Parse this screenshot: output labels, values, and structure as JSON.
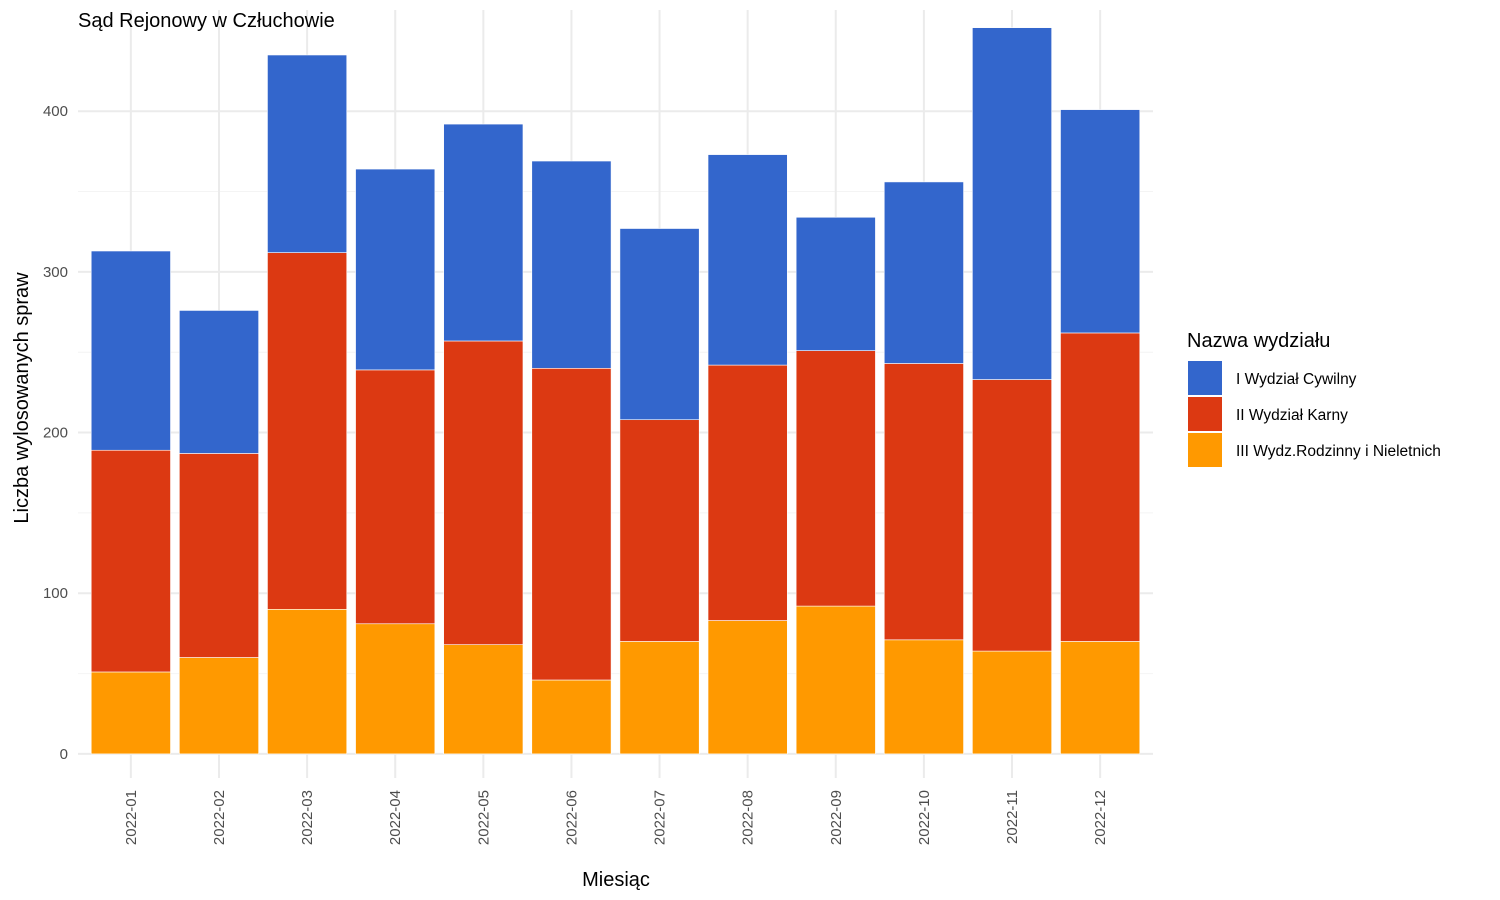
{
  "chart_data": {
    "type": "bar",
    "stacked": true,
    "title": "Sąd Rejonowy w Człuchowie",
    "xlabel": "Miesiąc",
    "ylabel": "Liczba wylosowanych spraw",
    "categories": [
      "2022-01",
      "2022-02",
      "2022-03",
      "2022-04",
      "2022-05",
      "2022-06",
      "2022-07",
      "2022-08",
      "2022-09",
      "2022-10",
      "2022-11",
      "2022-12"
    ],
    "yticks": [
      0,
      100,
      200,
      300,
      400
    ],
    "ylim": [
      -15,
      463
    ],
    "grid": true,
    "legend": {
      "title": "Nazwa wydziału",
      "position": "right"
    },
    "series": [
      {
        "name": "III Wydz.Rodzinny i Nieletnich",
        "color": "#FF9900",
        "values": [
          51,
          60,
          90,
          81,
          68,
          46,
          70,
          83,
          92,
          71,
          64,
          70
        ]
      },
      {
        "name": "II Wydział Karny",
        "color": "#DC3912",
        "values": [
          138,
          127,
          222,
          158,
          189,
          194,
          138,
          159,
          159,
          172,
          169,
          192
        ]
      },
      {
        "name": "I Wydział Cywilny",
        "color": "#3366CC",
        "values": [
          124,
          89,
          123,
          125,
          135,
          129,
          119,
          131,
          83,
          113,
          219,
          139
        ]
      }
    ],
    "legend_order": [
      "I Wydział Cywilny",
      "II Wydział Karny",
      "III Wydz.Rodzinny i Nieletnich"
    ]
  }
}
